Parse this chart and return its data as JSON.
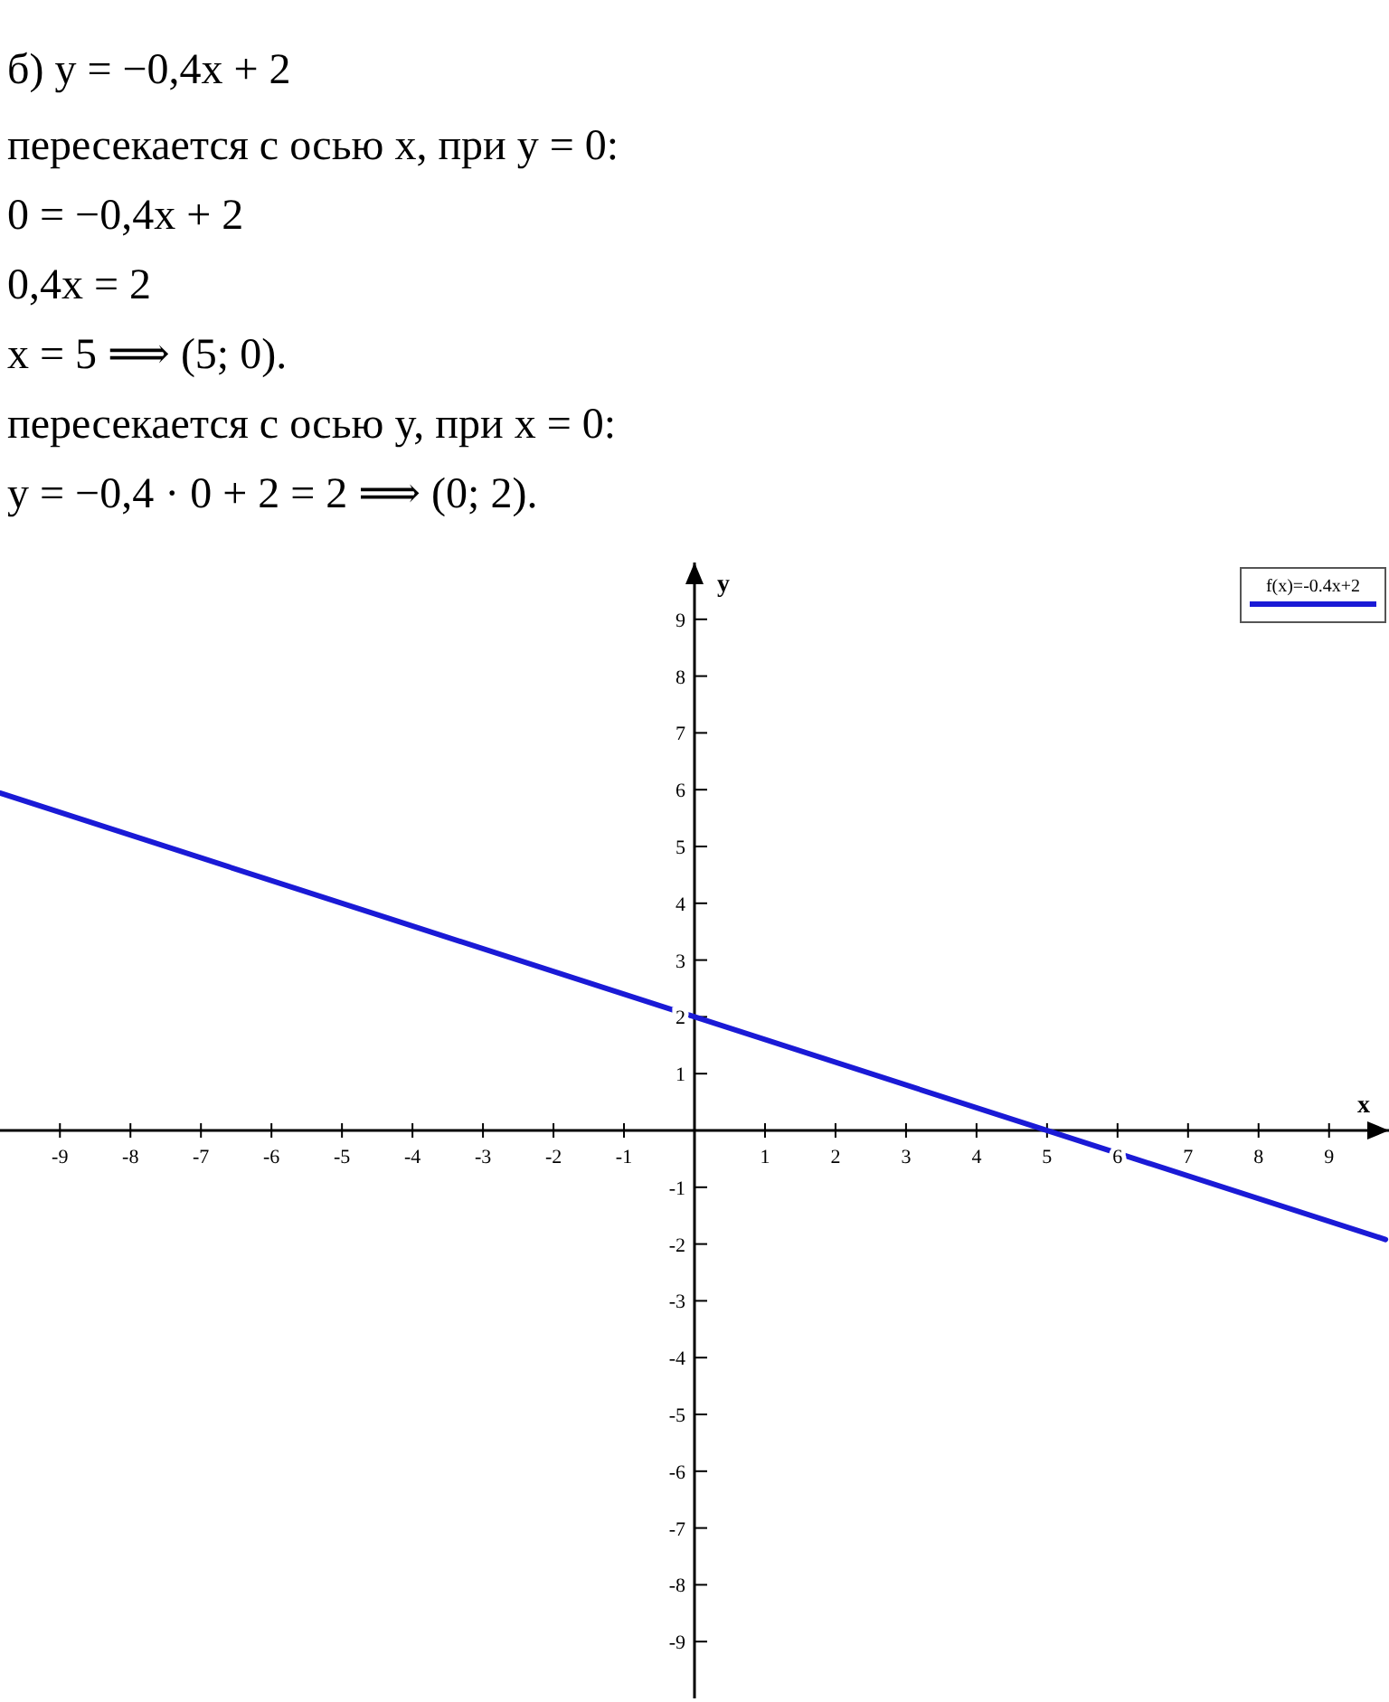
{
  "chart_data": {
    "type": "line",
    "title": "б) y = −0,4x + 2",
    "annotations": [
      "пересекается с осью x, при y = 0:",
      "0 = −0,4x + 2",
      "0,4x = 2",
      "x = 5  ⟹  (5; 0).",
      "пересекается с осью y, при x = 0:",
      "y = −0,4 · 0 + 2 = 2  ⟹  (0; 2)."
    ],
    "xlabel": "x",
    "ylabel": "y",
    "xlim": [
      -9.85,
      9.85
    ],
    "ylim": [
      -10,
      10
    ],
    "xticks": [
      -9,
      -8,
      -7,
      -6,
      -5,
      -4,
      -3,
      -2,
      -1,
      1,
      2,
      3,
      4,
      5,
      6,
      7,
      8,
      9
    ],
    "yticks": [
      -9,
      -8,
      -7,
      -6,
      -5,
      -4,
      -3,
      -2,
      -1,
      1,
      2,
      3,
      4,
      5,
      6,
      7,
      8,
      9
    ],
    "grid": false,
    "legend": "top right",
    "line_style": "solid",
    "marker": "none",
    "series": [
      {
        "name": "f(x)=-0.4x+2",
        "color": "#1a1ad6",
        "x": [
          -9.85,
          9.8
        ],
        "values": [
          5.94,
          -1.92
        ]
      }
    ]
  }
}
